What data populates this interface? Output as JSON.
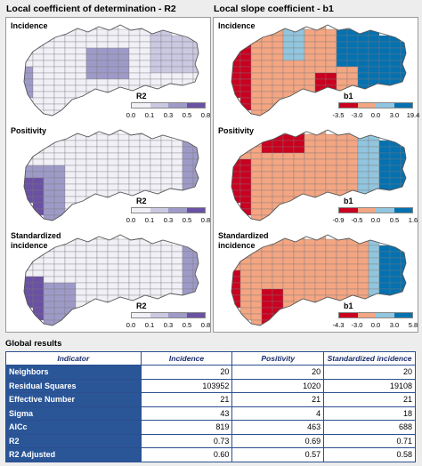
{
  "left_column": {
    "title": "Local coefficient of determination - R2",
    "maps": [
      {
        "title": "Incidence",
        "legend_title": "R2",
        "ticks": [
          "0.0",
          "0.1",
          "0.3",
          "0.5",
          "0.8"
        ]
      },
      {
        "title": "Positivity",
        "legend_title": "R2",
        "ticks": [
          "0.0",
          "0.1",
          "0.3",
          "0.5",
          "0.8"
        ]
      },
      {
        "title": "Standardized\nincidence",
        "legend_title": "R2",
        "ticks": [
          "0.0",
          "0.1",
          "0.3",
          "0.5",
          "0.8"
        ]
      }
    ],
    "colors": [
      "#f2f0f7",
      "#cbc9e2",
      "#9e9ac8",
      "#6a51a3"
    ]
  },
  "right_column": {
    "title": "Local slope coefficient - b1",
    "maps": [
      {
        "title": "Incidence",
        "legend_title": "b1",
        "ticks": [
          "-3.5",
          "-3.0",
          "0.0",
          "3.0",
          "19.4"
        ]
      },
      {
        "title": "Positivity",
        "legend_title": "b1",
        "ticks": [
          "-0.9",
          "-0.5",
          "0.0",
          "0.5",
          "1.6"
        ]
      },
      {
        "title": "Standardized\nincidence",
        "legend_title": "b1",
        "ticks": [
          "-4.3",
          "-3.0",
          "0.0",
          "3.0",
          "5.8"
        ]
      }
    ],
    "colors": [
      "#ca0020",
      "#f4a582",
      "#92c5de",
      "#0571b0"
    ]
  },
  "global": {
    "title": "Global results",
    "headers": [
      "Indicator",
      "Incidence",
      "Positivity",
      "Standardized incidence"
    ],
    "rows": [
      [
        "Neighbors",
        "20",
        "20",
        "20"
      ],
      [
        "Residual Squares",
        "103952",
        "1020",
        "19108"
      ],
      [
        "Effective Number",
        "21",
        "21",
        "21"
      ],
      [
        "Sigma",
        "43",
        "4",
        "18"
      ],
      [
        "AICc",
        "819",
        "463",
        "688"
      ],
      [
        "R2",
        "0.73",
        "0.69",
        "0.71"
      ],
      [
        "R2 Adjusted",
        "0.60",
        "0.57",
        "0.58"
      ]
    ]
  }
}
